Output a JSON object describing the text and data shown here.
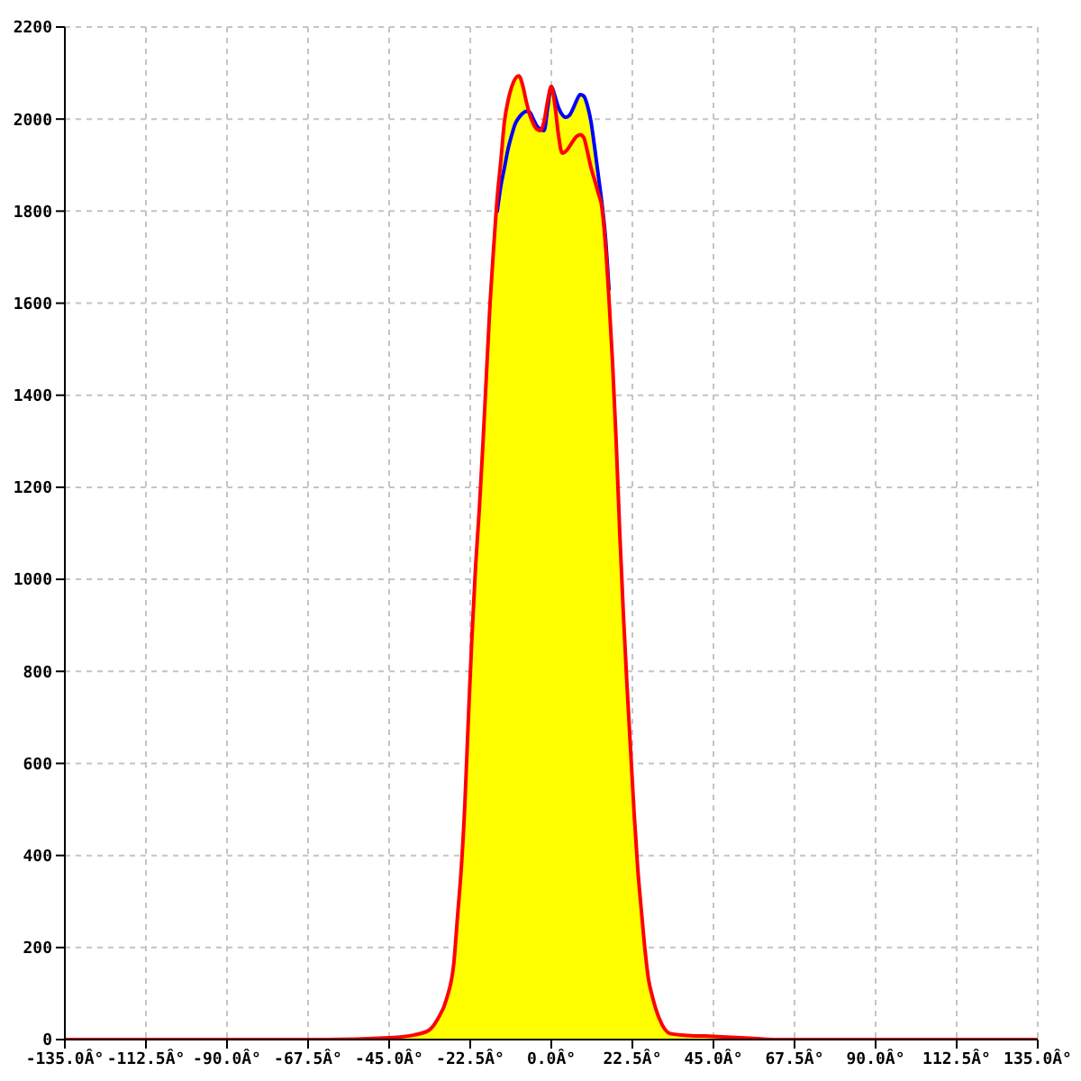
{
  "chart_data": {
    "type": "line",
    "x": [
      -135,
      -63,
      -45,
      -38,
      -34,
      -31.5,
      -29,
      -27,
      -26,
      -25,
      -24,
      -23,
      -22,
      -21,
      -20,
      -19,
      -18,
      -17,
      -16,
      -15,
      -14,
      -13,
      -12,
      -11,
      -10,
      -9,
      -8,
      -7,
      -6,
      -5,
      -4,
      -3,
      -2,
      -1,
      0,
      1,
      2,
      3,
      4,
      5,
      6,
      7,
      8,
      9,
      10,
      11,
      12,
      13,
      14,
      15,
      16,
      17,
      18,
      19,
      20,
      21,
      22,
      23,
      24,
      25,
      26,
      27,
      28,
      30,
      33,
      38,
      45,
      55,
      62,
      135
    ],
    "series": [
      {
        "type": "area",
        "color": "#ffff00",
        "values": [
          null,
          0,
          4,
          10,
          20,
          45,
          90,
          170,
          270,
          370,
          510,
          700,
          880,
          1030,
          1150,
          1290,
          1445,
          1600,
          1720,
          1830,
          1910,
          1995,
          2040,
          2070,
          2088,
          2094,
          2075,
          2040,
          2015,
          2000,
          1985,
          1978,
          1995,
          2040,
          2071,
          2050,
          2025,
          2010,
          2004,
          2008,
          2022,
          2040,
          2053,
          2050,
          2030,
          1995,
          1940,
          1880,
          1820,
          1745,
          1630,
          1470,
          1300,
          1100,
          925,
          770,
          630,
          490,
          370,
          280,
          195,
          130,
          95,
          45,
          13,
          9,
          7,
          3,
          0,
          null
        ]
      },
      {
        "color": "#0000ff",
        "values": [
          null,
          null,
          null,
          null,
          null,
          null,
          null,
          null,
          null,
          null,
          null,
          null,
          null,
          null,
          null,
          null,
          null,
          null,
          null,
          1800,
          1855,
          1895,
          1935,
          1965,
          1990,
          2003,
          2012,
          2017,
          2015,
          2000,
          1985,
          1978,
          1975,
          2025,
          2071,
          2050,
          2025,
          2010,
          2004,
          2008,
          2022,
          2040,
          2053,
          2050,
          2030,
          1995,
          1940,
          1880,
          1820,
          1745,
          1630,
          null,
          null,
          null,
          null,
          null,
          null,
          null,
          null,
          null,
          null,
          null,
          null,
          null,
          null,
          null,
          null,
          null,
          null,
          null
        ]
      },
      {
        "color": "#ff0000",
        "values": [
          0,
          0,
          4,
          10,
          20,
          45,
          90,
          170,
          270,
          370,
          510,
          700,
          880,
          1030,
          1150,
          1290,
          1445,
          1600,
          1720,
          1830,
          1910,
          1995,
          2040,
          2070,
          2088,
          2094,
          2075,
          2040,
          2010,
          1990,
          1978,
          1975,
          1995,
          2040,
          2071,
          2030,
          1965,
          1926,
          1930,
          1940,
          1952,
          1962,
          1966,
          1960,
          1930,
          1895,
          1868,
          1840,
          1810,
          1730,
          1610,
          1470,
          1300,
          1100,
          925,
          770,
          630,
          490,
          370,
          280,
          195,
          130,
          95,
          45,
          13,
          9,
          7,
          3,
          0,
          0
        ]
      }
    ],
    "xlim": [
      -135,
      135
    ],
    "xticks": [
      {
        "value": -135,
        "label": "-135.0Â°"
      },
      {
        "value": -112.5,
        "label": "-112.5Â°"
      },
      {
        "value": -90,
        "label": "-90.0Â°"
      },
      {
        "value": -67.5,
        "label": "-67.5Â°"
      },
      {
        "value": -45,
        "label": "-45.0Â°"
      },
      {
        "value": -22.5,
        "label": "-22.5Â°"
      },
      {
        "value": 0,
        "label": "0.0Â°"
      },
      {
        "value": 22.5,
        "label": "22.5Â°"
      },
      {
        "value": 45,
        "label": "45.0Â°"
      },
      {
        "value": 67.5,
        "label": "67.5Â°"
      },
      {
        "value": 90,
        "label": "90.0Â°"
      },
      {
        "value": 112.5,
        "label": "112.5Â°"
      },
      {
        "value": 135,
        "label": "135.0Â°"
      }
    ],
    "ylim": [
      0,
      2200
    ],
    "yticks": [
      0,
      200,
      400,
      600,
      800,
      1000,
      1200,
      1400,
      1600,
      1800,
      2000,
      2200
    ],
    "grid": true,
    "line_style": "solid"
  }
}
